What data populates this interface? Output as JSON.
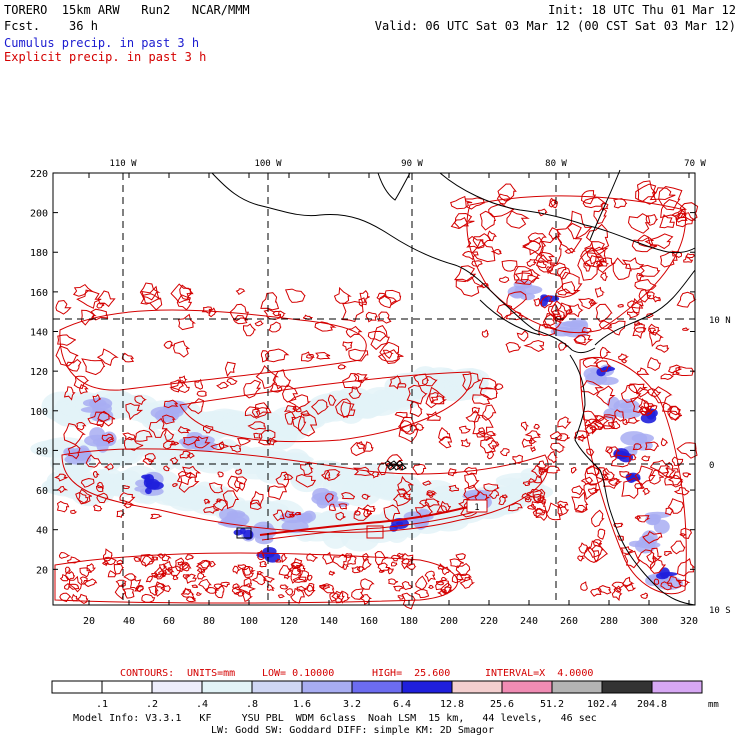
{
  "header": {
    "title_line": "TORERO  15km ARW   Run2   NCAR/MMM",
    "init": "Init: 18 UTC Thu 01 Mar 12",
    "fcst_line": "Fcst.    36 h",
    "valid": "Valid: 06 UTC Sat 03 Mar 12 (00 CST Sat 03 Mar 12)",
    "cumulus_label": "Cumulus precip. in past 3 h",
    "explicit_label": "Explicit precip. in past 3 h"
  },
  "map": {
    "lon_labels": [
      "110 W",
      "100 W",
      "90 W",
      "80 W",
      "70 W"
    ],
    "lat_labels": [
      "10 N",
      "0",
      "10 S"
    ],
    "x_ticks": [
      "20",
      "40",
      "60",
      "80",
      "100",
      "120",
      "140",
      "160",
      "180",
      "200",
      "220",
      "240",
      "260",
      "280",
      "300",
      "320"
    ],
    "y_ticks": [
      "20",
      "40",
      "60",
      "80",
      "100",
      "120",
      "140",
      "160",
      "180",
      "200",
      "220"
    ],
    "box_label": "1",
    "grid_dashed": true
  },
  "contour_info": {
    "contours": "CONTOURS:",
    "units": "UNITS=mm",
    "low": "LOW= 0.10000",
    "high": "HIGH=  25.600",
    "interval": "INTERVAL=X  4.0000"
  },
  "colorbar": {
    "labels": [
      ".1",
      ".2",
      ".4",
      ".8",
      "1.6",
      "3.2",
      "6.4",
      "12.8",
      "25.6",
      "51.2",
      "102.4",
      "204.8"
    ],
    "unit": "mm",
    "colors": [
      "#ffffff",
      "#ffffff",
      "#ededfb",
      "#e2f3f7",
      "#cfd6f4",
      "#a8adf2",
      "#6c6cf0",
      "#1f1fdc",
      "#f4cfcf",
      "#f08cb4",
      "#b4b4b4",
      "#333333",
      "#d7a8f4"
    ]
  },
  "footer": {
    "line1": "Model Info: V3.3.1   KF     YSU PBL  WDM 6class  Noah LSM  15 km,   44 levels,   46 sec",
    "line2": "LW: Godd SW: Goddard DIFF: simple KM: 2D Smagor"
  },
  "colors": {
    "explicit_red": "#d40000",
    "cumulus_blue": "#1b1bd0"
  }
}
